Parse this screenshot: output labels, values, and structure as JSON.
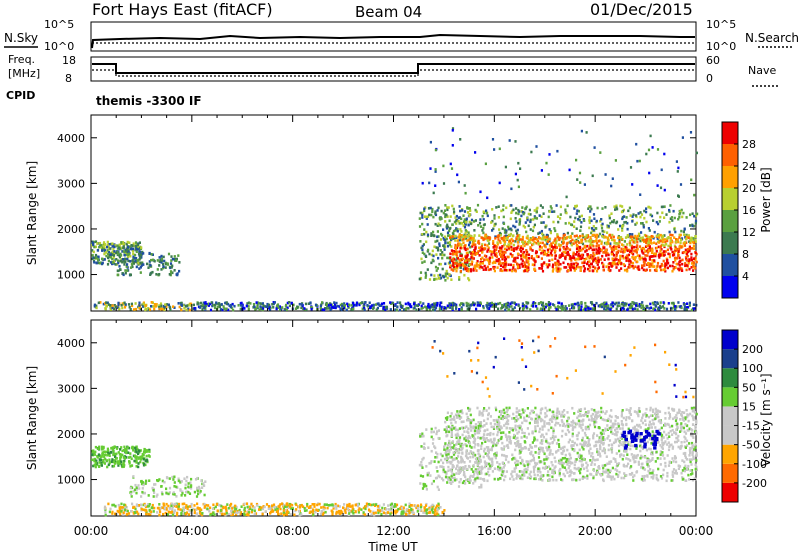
{
  "header": {
    "station": "Fort Hays East (fitACF)",
    "beam": "Beam 04",
    "date": "01/Dec/2015"
  },
  "noise_panel": {
    "left_label": "N.Sky",
    "left_ticks": [
      "10^5",
      "10^0"
    ],
    "right_label": "N.Search",
    "right_ticks": [
      "10^5",
      "10^0"
    ]
  },
  "freq_panel": {
    "left_label_line1": "Freq.",
    "left_label_line2": "[MHz]",
    "left_ticks": [
      "18",
      "8"
    ],
    "right_label": "Nave",
    "right_ticks": [
      "60",
      "0"
    ],
    "cpid_label": "CPID",
    "cpid_text": "themis -3300 IF"
  },
  "colors": {
    "power_scale": [
      "#0000ee",
      "#2050a0",
      "#3c7a50",
      "#5aa040",
      "#b8d030",
      "#ffa000",
      "#ff6000",
      "#ee0000"
    ],
    "velocity_scale": [
      "#ee0000",
      "#ff6a00",
      "#ffa500",
      "#c8c8c8",
      "#c8c8c8",
      "#66cc33",
      "#2e8b3e",
      "#1a3f8c",
      "#0000cc"
    ],
    "gray": "#c8c8c8"
  },
  "chart_data": [
    {
      "type": "heatmap",
      "title": "",
      "panel": "power",
      "xlabel": "Time UT",
      "ylabel": "Slant Range [km]",
      "xlim": [
        0,
        24
      ],
      "ylim": [
        200,
        4500
      ],
      "x_ticks": [
        "00:00",
        "04:00",
        "08:00",
        "12:00",
        "16:00",
        "20:00",
        "00:00"
      ],
      "y_ticks": [
        "1000",
        "2000",
        "3000",
        "4000"
      ],
      "colorbar_label": "Power [dB]",
      "colorbar_ticks": [
        "4",
        "8",
        "12",
        "16",
        "20",
        "24",
        "28"
      ],
      "colorbar_range": [
        0,
        30
      ]
    },
    {
      "type": "heatmap",
      "title": "",
      "panel": "velocity",
      "xlabel": "Time UT",
      "ylabel": "Slant Range [km]",
      "xlim": [
        0,
        24
      ],
      "ylim": [
        200,
        4500
      ],
      "x_ticks": [
        "00:00",
        "04:00",
        "08:00",
        "12:00",
        "16:00",
        "20:00",
        "00:00"
      ],
      "y_ticks": [
        "1000",
        "2000",
        "3000",
        "4000"
      ],
      "colorbar_label": "Velocity [m s⁻¹]",
      "colorbar_ticks": [
        "200",
        "100",
        "50",
        "15",
        "-15",
        "-50",
        "-100",
        "-200"
      ]
    }
  ]
}
